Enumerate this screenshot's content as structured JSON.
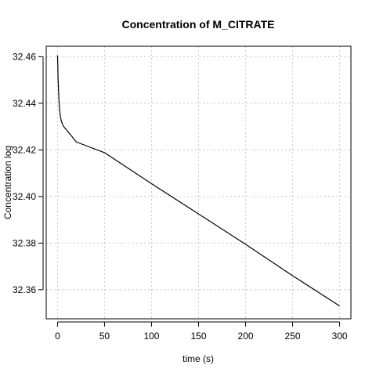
{
  "chart_data": {
    "type": "line",
    "title": "Concentration of M_CITRATE",
    "xlabel": "time (s)",
    "ylabel": "Concentration log",
    "xlim": [
      -12,
      312
    ],
    "ylim": [
      32.3475,
      32.4645
    ],
    "x_ticks": [
      0,
      50,
      100,
      150,
      200,
      250,
      300
    ],
    "y_ticks": [
      32.36,
      32.38,
      32.4,
      32.42,
      32.44,
      32.46
    ],
    "x_tick_labels": [
      "0",
      "50",
      "100",
      "150",
      "200",
      "250",
      "300"
    ],
    "y_tick_labels": [
      "32.36",
      "32.38",
      "32.40",
      "32.42",
      "32.44",
      "32.46"
    ],
    "grid": true,
    "legend": "none",
    "series": [
      {
        "color": "#000000",
        "x": [
          0.0,
          0.3,
          0.6,
          1.0,
          1.5,
          2.0,
          2.5,
          3.0,
          4.0,
          5.0,
          6.0,
          7.0,
          8.0,
          9.0,
          10.0,
          15.0,
          20.0,
          50.0,
          100.0,
          150.0,
          200.0,
          250.0,
          300.0
        ],
        "y": [
          32.4605,
          32.4565,
          32.451,
          32.4465,
          32.442,
          32.4385,
          32.4365,
          32.4345,
          32.4325,
          32.4313,
          32.4305,
          32.4298,
          32.4293,
          32.4289,
          32.4284,
          32.4259,
          32.4234,
          32.4188,
          32.4055,
          32.3925,
          32.3795,
          32.366,
          32.353
        ]
      }
    ]
  }
}
